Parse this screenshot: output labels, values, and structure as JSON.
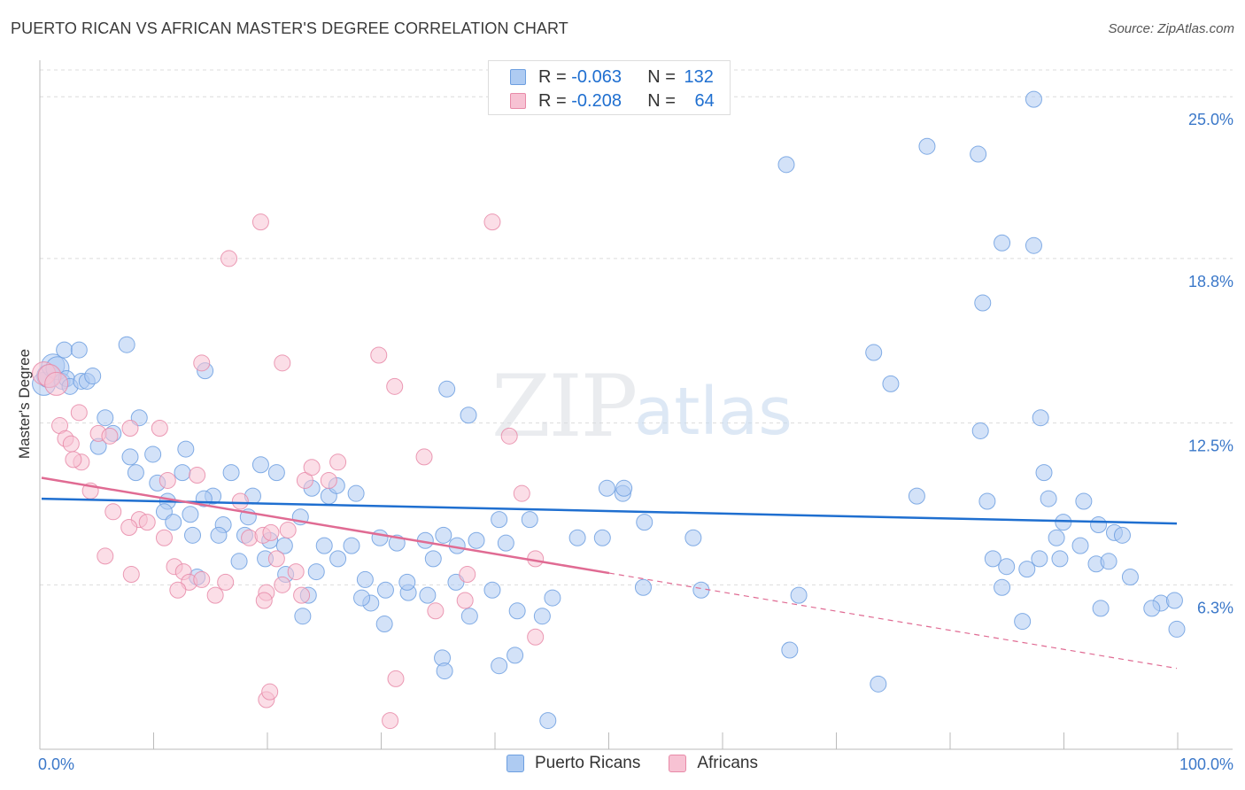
{
  "title": "PUERTO RICAN VS AFRICAN MASTER'S DEGREE CORRELATION CHART",
  "source": "Source: ZipAtlas.com",
  "watermark": {
    "zip": "ZIP",
    "atlas": "atlas"
  },
  "legend_top": {
    "rows": [
      {
        "r_label": "R = ",
        "r_value": "-0.063",
        "n_label": "N = ",
        "n_value": "132",
        "color": "#aecbf2",
        "stroke": "#6d9fe0"
      },
      {
        "r_label": "R = ",
        "r_value": "-0.208",
        "n_label": "N = ",
        "n_value": "64",
        "color": "#f7c2d3",
        "stroke": "#e88aa8"
      }
    ]
  },
  "legend_bottom": [
    {
      "label": "Puerto Ricans",
      "color": "#aecbf2",
      "stroke": "#6d9fe0"
    },
    {
      "label": "Africans",
      "color": "#f7c2d3",
      "stroke": "#e88aa8"
    }
  ],
  "chart_data": {
    "type": "scatter",
    "title": "PUERTO RICAN VS AFRICAN MASTER'S DEGREE CORRELATION CHART",
    "xlabel": "",
    "ylabel": "Master's Degree",
    "xlim": [
      0,
      100
    ],
    "ylim": [
      0,
      26.5
    ],
    "x_tick_labels": [
      "0.0%",
      "100.0%"
    ],
    "y_ticks": [
      {
        "value": 6.3,
        "label": "6.3%"
      },
      {
        "value": 12.5,
        "label": "12.5%"
      },
      {
        "value": 18.8,
        "label": "18.8%"
      },
      {
        "value": 25.0,
        "label": "25.0%"
      }
    ],
    "x_minor_ticks": [
      0,
      10,
      20,
      30,
      40,
      50,
      60,
      70,
      80,
      90,
      100
    ],
    "series": [
      {
        "name": "Puerto Ricans",
        "color": "#6d9fe0",
        "fill": "#aecbf2",
        "trend": {
          "x0": 0,
          "y0": 9.6,
          "x1": 100,
          "y1": 8.65,
          "color": "#1f6fd0",
          "dashed_from": null
        },
        "points": [
          [
            0.2,
            14.0
          ],
          [
            0.6,
            14.3
          ],
          [
            1.0,
            14.7
          ],
          [
            1.4,
            14.6
          ],
          [
            1.8,
            14.1
          ],
          [
            2.2,
            14.2
          ],
          [
            2.5,
            13.9
          ],
          [
            3.5,
            14.1
          ],
          [
            4.0,
            14.1
          ],
          [
            2.0,
            15.3
          ],
          [
            3.3,
            15.3
          ],
          [
            7.5,
            15.5
          ],
          [
            4.5,
            14.3
          ],
          [
            5.6,
            12.7
          ],
          [
            6.3,
            12.1
          ],
          [
            8.6,
            12.7
          ],
          [
            5.0,
            11.6
          ],
          [
            7.8,
            11.2
          ],
          [
            9.8,
            11.3
          ],
          [
            12.7,
            11.5
          ],
          [
            14.4,
            14.5
          ],
          [
            10.2,
            10.2
          ],
          [
            8.3,
            10.6
          ],
          [
            12.4,
            10.6
          ],
          [
            16.7,
            10.6
          ],
          [
            19.3,
            10.9
          ],
          [
            20.7,
            10.6
          ],
          [
            23.8,
            10.0
          ],
          [
            25.3,
            9.7
          ],
          [
            26.0,
            10.1
          ],
          [
            27.7,
            9.8
          ],
          [
            18.6,
            9.7
          ],
          [
            15.1,
            9.7
          ],
          [
            11.1,
            9.5
          ],
          [
            10.8,
            9.1
          ],
          [
            13.1,
            9.0
          ],
          [
            14.3,
            9.6
          ],
          [
            11.6,
            8.7
          ],
          [
            16.0,
            8.6
          ],
          [
            18.2,
            8.9
          ],
          [
            22.8,
            8.9
          ],
          [
            13.3,
            8.2
          ],
          [
            15.6,
            8.2
          ],
          [
            17.9,
            8.2
          ],
          [
            20.1,
            8.0
          ],
          [
            21.4,
            7.8
          ],
          [
            24.9,
            7.8
          ],
          [
            27.3,
            7.8
          ],
          [
            29.8,
            8.1
          ],
          [
            31.3,
            7.9
          ],
          [
            33.8,
            8.0
          ],
          [
            35.4,
            8.2
          ],
          [
            36.6,
            7.8
          ],
          [
            38.3,
            8.0
          ],
          [
            40.3,
            8.8
          ],
          [
            40.9,
            7.9
          ],
          [
            43.0,
            8.8
          ],
          [
            47.2,
            8.1
          ],
          [
            49.4,
            8.1
          ],
          [
            51.2,
            9.8
          ],
          [
            49.8,
            10.0
          ],
          [
            51.3,
            10.0
          ],
          [
            57.4,
            8.1
          ],
          [
            17.4,
            7.2
          ],
          [
            13.7,
            6.6
          ],
          [
            19.7,
            7.3
          ],
          [
            21.5,
            6.7
          ],
          [
            24.2,
            6.8
          ],
          [
            26.1,
            7.3
          ],
          [
            28.5,
            6.5
          ],
          [
            30.3,
            6.1
          ],
          [
            32.3,
            6.0
          ],
          [
            34.5,
            7.3
          ],
          [
            32.2,
            6.4
          ],
          [
            34.0,
            5.9
          ],
          [
            36.5,
            6.4
          ],
          [
            29.0,
            5.6
          ],
          [
            28.2,
            5.8
          ],
          [
            23.5,
            5.9
          ],
          [
            23.0,
            5.1
          ],
          [
            30.2,
            4.8
          ],
          [
            37.7,
            5.1
          ],
          [
            39.7,
            6.1
          ],
          [
            41.9,
            5.3
          ],
          [
            44.1,
            5.1
          ],
          [
            45.0,
            5.8
          ],
          [
            35.3,
            3.5
          ],
          [
            35.5,
            3.0
          ],
          [
            40.3,
            3.2
          ],
          [
            41.7,
            3.6
          ],
          [
            44.6,
            1.1
          ],
          [
            53.0,
            6.2
          ],
          [
            58.1,
            6.1
          ],
          [
            53.1,
            8.7
          ],
          [
            35.7,
            13.8
          ],
          [
            37.6,
            12.8
          ],
          [
            65.6,
            22.4
          ],
          [
            78.0,
            23.1
          ],
          [
            82.5,
            22.8
          ],
          [
            87.4,
            24.9
          ],
          [
            84.6,
            19.4
          ],
          [
            87.4,
            19.3
          ],
          [
            82.9,
            17.1
          ],
          [
            73.3,
            15.2
          ],
          [
            74.8,
            14.0
          ],
          [
            82.7,
            12.2
          ],
          [
            88.0,
            12.7
          ],
          [
            88.3,
            10.6
          ],
          [
            88.7,
            9.6
          ],
          [
            91.8,
            9.5
          ],
          [
            77.1,
            9.7
          ],
          [
            83.3,
            9.5
          ],
          [
            90.0,
            8.7
          ],
          [
            89.4,
            8.1
          ],
          [
            91.5,
            7.8
          ],
          [
            93.1,
            8.6
          ],
          [
            94.5,
            8.3
          ],
          [
            95.2,
            8.2
          ],
          [
            89.7,
            7.3
          ],
          [
            83.8,
            7.3
          ],
          [
            85.0,
            7.0
          ],
          [
            92.9,
            7.1
          ],
          [
            94.0,
            7.2
          ],
          [
            87.9,
            7.3
          ],
          [
            84.6,
            6.2
          ],
          [
            86.8,
            6.9
          ],
          [
            95.9,
            6.6
          ],
          [
            98.6,
            5.6
          ],
          [
            99.8,
            5.7
          ],
          [
            97.8,
            5.4
          ],
          [
            86.4,
            4.9
          ],
          [
            93.3,
            5.4
          ],
          [
            100.0,
            4.6
          ],
          [
            65.9,
            3.8
          ],
          [
            73.7,
            2.5
          ],
          [
            66.7,
            5.9
          ]
        ]
      },
      {
        "name": "Africans",
        "color": "#e88aa8",
        "fill": "#f7c2d3",
        "trend": {
          "x0": 0,
          "y0": 10.4,
          "x1": 100,
          "y1": 3.1,
          "color": "#e06b93",
          "dashed_from": 50
        },
        "points": [
          [
            0.2,
            14.4
          ],
          [
            0.7,
            14.3
          ],
          [
            1.3,
            14.0
          ],
          [
            1.6,
            12.4
          ],
          [
            2.1,
            11.9
          ],
          [
            2.6,
            11.7
          ],
          [
            3.3,
            12.9
          ],
          [
            3.5,
            11.0
          ],
          [
            2.8,
            11.1
          ],
          [
            4.3,
            9.9
          ],
          [
            5.0,
            12.1
          ],
          [
            6.0,
            12.0
          ],
          [
            7.8,
            12.3
          ],
          [
            10.4,
            12.3
          ],
          [
            11.1,
            10.3
          ],
          [
            13.7,
            10.5
          ],
          [
            6.3,
            9.1
          ],
          [
            8.6,
            8.8
          ],
          [
            9.3,
            8.7
          ],
          [
            10.8,
            8.1
          ],
          [
            7.7,
            8.5
          ],
          [
            5.6,
            7.4
          ],
          [
            7.9,
            6.7
          ],
          [
            11.7,
            7.0
          ],
          [
            12.5,
            6.8
          ],
          [
            13.0,
            6.4
          ],
          [
            14.1,
            6.5
          ],
          [
            12.0,
            6.1
          ],
          [
            15.3,
            5.9
          ],
          [
            16.2,
            6.4
          ],
          [
            17.5,
            9.5
          ],
          [
            18.3,
            8.1
          ],
          [
            19.5,
            8.2
          ],
          [
            20.2,
            8.3
          ],
          [
            20.7,
            7.3
          ],
          [
            21.7,
            8.4
          ],
          [
            23.2,
            10.3
          ],
          [
            23.8,
            10.8
          ],
          [
            25.3,
            10.3
          ],
          [
            26.1,
            11.0
          ],
          [
            21.2,
            6.3
          ],
          [
            19.8,
            6.0
          ],
          [
            19.6,
            5.7
          ],
          [
            19.8,
            1.9
          ],
          [
            20.1,
            2.2
          ],
          [
            22.4,
            6.8
          ],
          [
            22.9,
            5.9
          ],
          [
            16.5,
            18.8
          ],
          [
            19.3,
            20.2
          ],
          [
            14.1,
            14.8
          ],
          [
            21.2,
            14.8
          ],
          [
            29.7,
            15.1
          ],
          [
            31.1,
            13.9
          ],
          [
            33.7,
            11.2
          ],
          [
            37.5,
            6.7
          ],
          [
            37.3,
            5.7
          ],
          [
            34.7,
            5.3
          ],
          [
            39.7,
            20.2
          ],
          [
            41.2,
            12.0
          ],
          [
            42.3,
            9.8
          ],
          [
            43.5,
            7.3
          ],
          [
            43.5,
            4.3
          ],
          [
            31.2,
            2.7
          ],
          [
            30.7,
            1.1
          ]
        ]
      }
    ]
  }
}
